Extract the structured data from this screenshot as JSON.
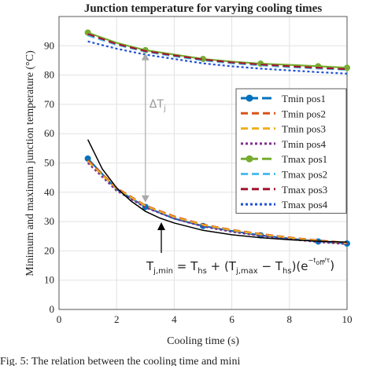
{
  "chart_data": {
    "type": "line",
    "title": "Junction temperature for varying cooling times",
    "x_label": "Cooling time (s)",
    "y_label": "Minimum and maximum junction temperature (°C)",
    "x": [
      1,
      2,
      3,
      4,
      5,
      6,
      7,
      8,
      9,
      10
    ],
    "xlim": [
      0,
      10
    ],
    "xticks": [
      0,
      2,
      4,
      6,
      8,
      10
    ],
    "ylim": [
      0,
      100
    ],
    "yticks": [
      0,
      10,
      20,
      30,
      40,
      50,
      60,
      70,
      80,
      90
    ],
    "grid": true,
    "legend": "upper right",
    "series": [
      {
        "name": "Tmin pos1",
        "color": "#0072bd",
        "dash": "solid",
        "marker": "o",
        "values": [
          51.5,
          41,
          35,
          31,
          28.5,
          26.8,
          25.3,
          24.2,
          23.2,
          22.5
        ]
      },
      {
        "name": "Tmin pos2",
        "color": "#d95319",
        "dash": "dashed",
        "values": [
          51,
          41.5,
          35.5,
          31.8,
          29,
          27.2,
          25.8,
          24.6,
          23.6,
          22.8
        ]
      },
      {
        "name": "Tmin pos3",
        "color": "#edb120",
        "dash": "dashed",
        "values": [
          50.5,
          41.2,
          35.3,
          31.5,
          28.8,
          27,
          25.6,
          24.4,
          23.4,
          22.6
        ]
      },
      {
        "name": "Tmin pos4",
        "color": "#7e2f8e",
        "dash": "dotted",
        "values": [
          50,
          40.5,
          34.8,
          31,
          28.3,
          26.5,
          25.1,
          24,
          23,
          22.3
        ]
      },
      {
        "name": "Tmax pos1",
        "color": "#77ac30",
        "dash": "solid",
        "marker": "o",
        "values": [
          94.5,
          91,
          88.5,
          87,
          85.5,
          84.6,
          83.9,
          83.5,
          83,
          82.5
        ]
      },
      {
        "name": "Tmax pos2",
        "color": "#4dbeee",
        "dash": "dashed",
        "values": [
          93.5,
          90.3,
          88,
          86.4,
          85,
          84,
          83.3,
          82.7,
          82.2,
          81.8
        ]
      },
      {
        "name": "Tmax pos3",
        "color": "#a2142f",
        "dash": "dashed",
        "values": [
          94,
          90.6,
          88.2,
          86.7,
          85.3,
          84.3,
          83.6,
          83,
          82.5,
          82
        ]
      },
      {
        "name": "Tmax pos4",
        "color": "#1f4fd8",
        "dash": "dotted",
        "values": [
          91.5,
          89,
          87,
          85.5,
          84,
          83,
          82.2,
          81.6,
          81,
          80.5
        ]
      }
    ],
    "fit": {
      "color": "#000000",
      "x": [
        1,
        1.5,
        2,
        2.5,
        3,
        3.5,
        4,
        5,
        6,
        7,
        8,
        9,
        10
      ],
      "values": [
        58,
        48,
        41.5,
        37,
        33.5,
        31.2,
        29.5,
        27,
        25.5,
        24.5,
        23.8,
        23.3,
        23
      ]
    },
    "delta_label": [
      "ΔT",
      "j"
    ],
    "formula": [
      "T",
      "j,min",
      " = T",
      "hs",
      " + (T",
      "j,max",
      " − T",
      "hs",
      ")(e",
      "−",
      "t",
      "off",
      "/τ",
      ")"
    ],
    "caption": "Fig. 5: The relation between the cooling time and mini"
  }
}
